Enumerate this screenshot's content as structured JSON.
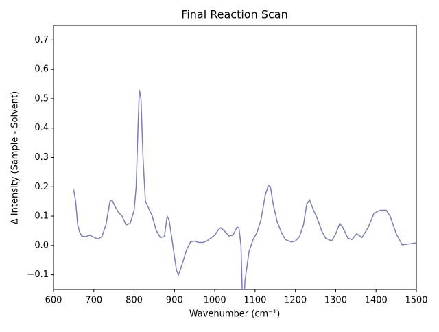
{
  "chart_data": {
    "type": "line",
    "title": "Final Reaction Scan",
    "xlabel": "Wavenumber (cm⁻¹)",
    "ylabel": "Δ Intensity (Sample - Solvent)",
    "x": [
      650,
      655,
      660,
      665,
      670,
      680,
      690,
      700,
      710,
      720,
      730,
      740,
      745,
      750,
      760,
      770,
      780,
      790,
      800,
      805,
      810,
      813,
      817,
      822,
      828,
      835,
      845,
      855,
      865,
      875,
      882,
      887,
      895,
      905,
      910,
      920,
      930,
      940,
      950,
      960,
      970,
      980,
      1000,
      1010,
      1015,
      1025,
      1035,
      1045,
      1055,
      1060,
      1065,
      1068,
      1072,
      1075,
      1085,
      1095,
      1105,
      1115,
      1125,
      1133,
      1138,
      1145,
      1155,
      1165,
      1175,
      1190,
      1200,
      1210,
      1220,
      1228,
      1235,
      1245,
      1255,
      1265,
      1275,
      1290,
      1300,
      1310,
      1318,
      1330,
      1340,
      1352,
      1365,
      1380,
      1395,
      1410,
      1425,
      1435,
      1450,
      1465,
      1480,
      1500
    ],
    "series": [
      {
        "color": "#7b7fb5",
        "values": [
          0.19,
          0.15,
          0.07,
          0.045,
          0.032,
          0.03,
          0.035,
          0.028,
          0.022,
          0.03,
          0.07,
          0.15,
          0.155,
          0.14,
          0.115,
          0.1,
          0.07,
          0.075,
          0.12,
          0.2,
          0.42,
          0.53,
          0.5,
          0.3,
          0.15,
          0.13,
          0.1,
          0.05,
          0.027,
          0.03,
          0.1,
          0.085,
          0.01,
          -0.085,
          -0.1,
          -0.06,
          -0.015,
          0.012,
          0.015,
          0.01,
          0.01,
          0.015,
          0.035,
          0.055,
          0.06,
          0.048,
          0.032,
          0.035,
          0.062,
          0.06,
          0.0,
          -0.15,
          -0.2,
          -0.12,
          -0.02,
          0.02,
          0.045,
          0.09,
          0.17,
          0.205,
          0.2,
          0.14,
          0.08,
          0.045,
          0.02,
          0.012,
          0.015,
          0.03,
          0.07,
          0.14,
          0.155,
          0.12,
          0.09,
          0.05,
          0.025,
          0.015,
          0.04,
          0.075,
          0.06,
          0.025,
          0.02,
          0.04,
          0.027,
          0.06,
          0.11,
          0.12,
          0.12,
          0.1,
          0.04,
          0.002,
          0.005,
          0.009
        ]
      }
    ],
    "xlim": [
      600,
      1500
    ],
    "ylim": [
      -0.15,
      0.75
    ],
    "xticks": [
      600,
      700,
      800,
      900,
      1000,
      1100,
      1200,
      1300,
      1400,
      1500
    ],
    "yticks": [
      {
        "value": -0.1,
        "label": "−0.1"
      },
      {
        "value": 0,
        "label": "0.0"
      },
      0.1,
      0.2,
      0.3,
      0.4,
      0.5,
      0.6,
      0.7
    ]
  }
}
